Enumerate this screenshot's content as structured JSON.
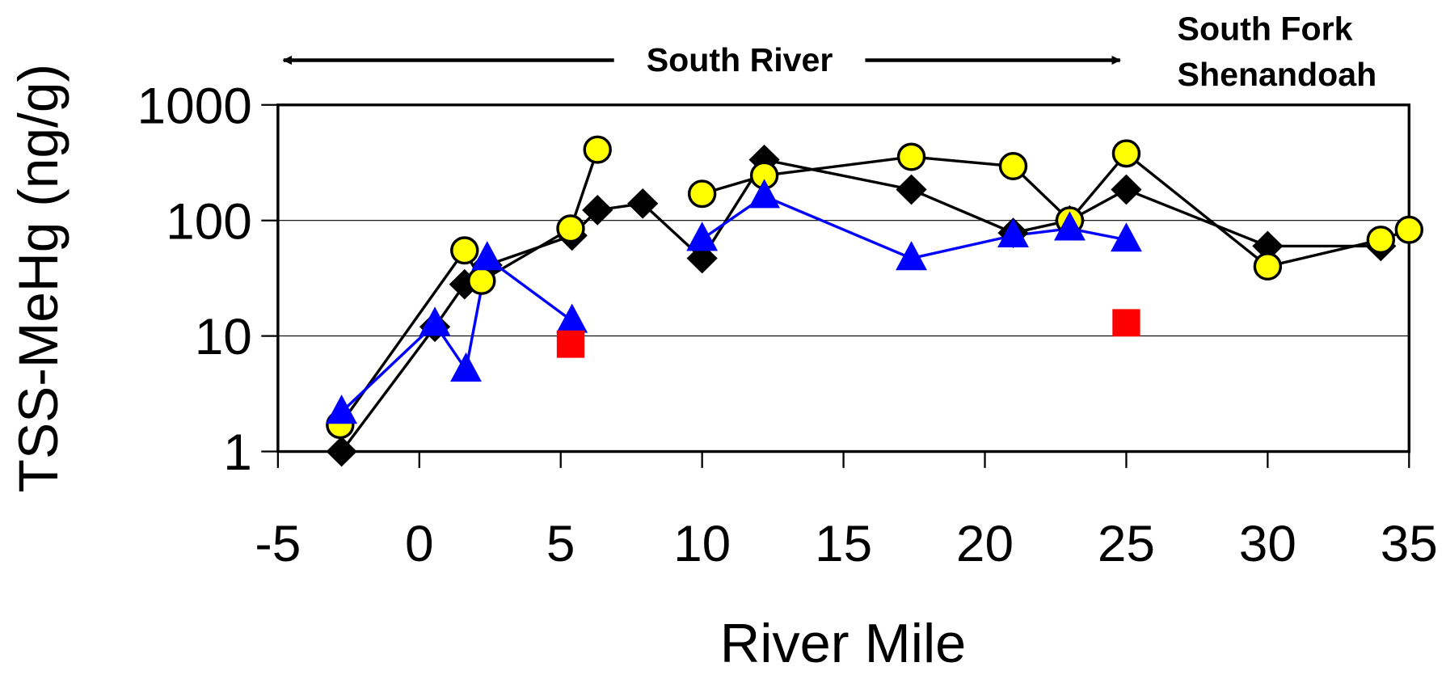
{
  "chart_data": {
    "type": "line",
    "ylabel": "TSS-MeHg (ng/g)",
    "xlabel": "River Mile",
    "annotations": [
      "South River",
      "South Fork",
      "Shenandoah"
    ],
    "xlim": [
      -5,
      35
    ],
    "xticks": [
      -5,
      0,
      5,
      10,
      15,
      20,
      25,
      30,
      35
    ],
    "ylim": [
      1,
      1000
    ],
    "yticks": [
      1,
      10,
      100,
      1000
    ],
    "ylog": true,
    "grid": true,
    "series": [
      {
        "color": "#000000",
        "marker": "diamond",
        "line": true,
        "x": [
          -2.75,
          0.55,
          1.6,
          2.4,
          5.4,
          6.3,
          7.9,
          10,
          12.2,
          17.4,
          21,
          23,
          25,
          30,
          34
        ],
        "values": [
          1,
          12,
          28,
          41,
          74,
          123,
          140,
          47,
          335,
          185,
          78,
          100,
          185,
          60,
          60
        ]
      },
      {
        "color": "#ffff00",
        "marker": "circle",
        "line": true,
        "x": [
          -2.8,
          1.6,
          2.2,
          5.35,
          6.3,
          null,
          10,
          12.2,
          17.4,
          21,
          23,
          25,
          30,
          34,
          35
        ],
        "values": [
          1.7,
          55,
          30,
          85,
          410,
          null,
          170,
          245,
          355,
          295,
          100,
          380,
          40,
          68,
          83
        ]
      },
      {
        "color": "#0000ff",
        "marker": "triangle",
        "line": true,
        "x": [
          -2.75,
          0.55,
          1.65,
          2.4,
          5.4,
          null,
          10,
          12.2,
          17.4,
          21,
          23,
          25
        ],
        "values": [
          2.2,
          12.7,
          5.1,
          47,
          13.5,
          null,
          69,
          162,
          47,
          74,
          85,
          68
        ]
      },
      {
        "color": "#ff0000",
        "marker": "square",
        "line": false,
        "x": [
          5.35,
          25
        ],
        "values": [
          8.5,
          13
        ]
      }
    ]
  }
}
